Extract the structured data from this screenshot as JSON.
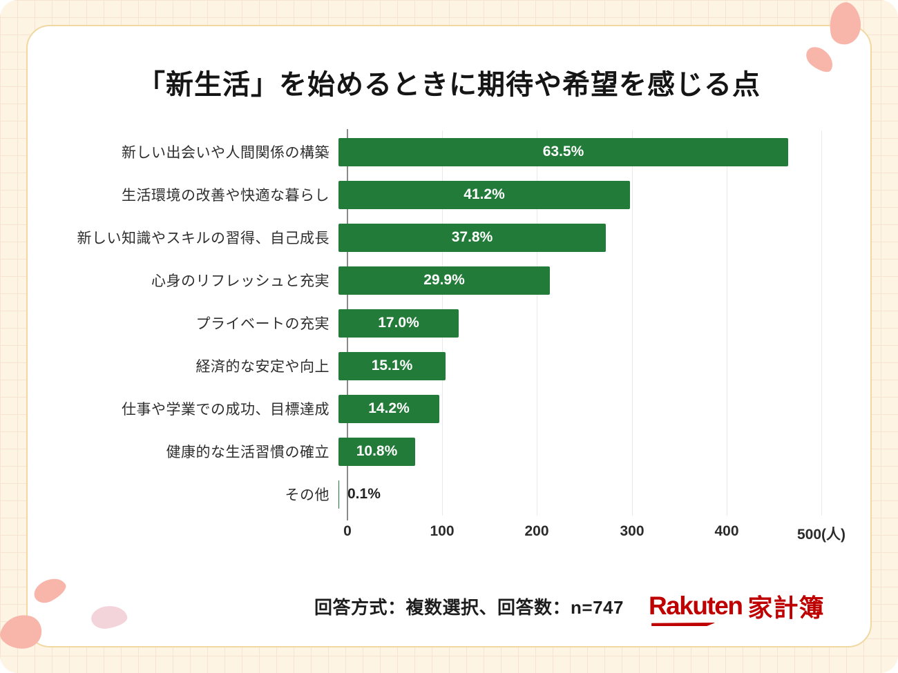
{
  "page": {
    "background_color": "#fdf4e3",
    "grid_line_color": "#f8e3d0",
    "card_background": "#ffffff",
    "card_border_color": "#f1d7a0",
    "petal_color_salmon": "#f8b6ab",
    "petal_color_light_pink": "#f4d4db"
  },
  "chart_data": {
    "type": "bar",
    "orientation": "horizontal",
    "title": "「新生活」を始めるときに期待や希望を感じる点",
    "n": 747,
    "unit": "人",
    "categories": [
      "新しい出会いや人間関係の構築",
      "生活環境の改善や快適な暮らし",
      "新しい知識やスキルの習得、自己成長",
      "心身のリフレッシュと充実",
      "プライベートの充実",
      "経済的な安定や向上",
      "仕事や学業での成功、目標達成",
      "健康的な生活習慣の確立",
      "その他"
    ],
    "values_percent": [
      63.5,
      41.2,
      37.8,
      29.9,
      17.0,
      15.1,
      14.2,
      10.8,
      0.1
    ],
    "value_labels": [
      "63.5%",
      "41.2%",
      "37.8%",
      "29.9%",
      "17.0%",
      "15.1%",
      "14.2%",
      "10.8%",
      "0.1%"
    ],
    "values_people": [
      474,
      308,
      282,
      223,
      127,
      113,
      106,
      81,
      1
    ],
    "x_ticks": [
      "0",
      "100",
      "200",
      "300",
      "400",
      "500(人)"
    ],
    "xlim": [
      0,
      500
    ],
    "grid": true,
    "legend": false,
    "bar_color": "#237b3a",
    "bar_label_color_inside": "#ffffff",
    "bar_label_color_outside": "#222222"
  },
  "footer": {
    "note": "回答方式：複数選択、回答数：n=747",
    "logo": {
      "brand": "Rakuten",
      "product": "家計簿",
      "color": "#bf0000"
    }
  }
}
